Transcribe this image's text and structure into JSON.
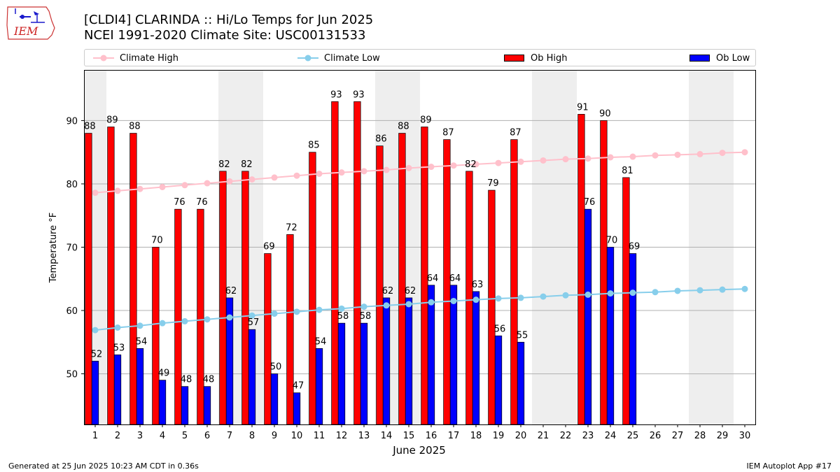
{
  "header": {
    "title_line1": "[CLDI4] CLARINDA :: Hi/Lo Temps for Jun 2025",
    "title_line2": "NCEI 1991-2020 Climate Site: USC00131533"
  },
  "logo": {
    "text": "IEM",
    "color": "#cc2222"
  },
  "footer": {
    "generated": "Generated at 25 Jun 2025 10:23 AM CDT in 0.36s",
    "app": "IEM Autoplot App #17"
  },
  "colors": {
    "climate_high": "#ffc0cb",
    "climate_low": "#87ceeb",
    "ob_high": "#ff0000",
    "ob_low": "#0000ff",
    "weekend_shade": "#eeeeee",
    "grid": "#b0b0b0"
  },
  "chart_data": {
    "type": "bar",
    "xlabel": "June 2025",
    "ylabel": "Temperature °F",
    "ylim": [
      42,
      98
    ],
    "yticks": [
      50,
      60,
      70,
      80,
      90
    ],
    "grid": "horizontal",
    "legend_position": "top",
    "days": [
      1,
      2,
      3,
      4,
      5,
      6,
      7,
      8,
      9,
      10,
      11,
      12,
      13,
      14,
      15,
      16,
      17,
      18,
      19,
      20,
      21,
      22,
      23,
      24,
      25,
      26,
      27,
      28,
      29,
      30
    ],
    "shaded_days": [
      1,
      7,
      8,
      14,
      15,
      21,
      22,
      28,
      29
    ],
    "series": [
      {
        "name": "Climate High",
        "kind": "line",
        "values": [
          78.6,
          78.9,
          79.2,
          79.5,
          79.8,
          80.1,
          80.4,
          80.7,
          81.0,
          81.3,
          81.6,
          81.8,
          82.0,
          82.2,
          82.5,
          82.7,
          82.9,
          83.1,
          83.3,
          83.5,
          83.7,
          83.9,
          84.0,
          84.2,
          84.3,
          84.5,
          84.6,
          84.7,
          84.9,
          85.0
        ]
      },
      {
        "name": "Climate Low",
        "kind": "line",
        "values": [
          56.9,
          57.3,
          57.6,
          58.0,
          58.3,
          58.6,
          58.9,
          59.2,
          59.5,
          59.8,
          60.1,
          60.3,
          60.6,
          60.8,
          61.0,
          61.3,
          61.5,
          61.7,
          61.9,
          62.0,
          62.2,
          62.4,
          62.5,
          62.7,
          62.8,
          62.9,
          63.1,
          63.2,
          63.3,
          63.4
        ]
      },
      {
        "name": "Ob High",
        "kind": "bar",
        "values": [
          88,
          89,
          88,
          70,
          76,
          76,
          82,
          82,
          69,
          72,
          85,
          93,
          93,
          86,
          88,
          89,
          87,
          82,
          79,
          87,
          null,
          null,
          91,
          90,
          81,
          null,
          null,
          null,
          null,
          null
        ]
      },
      {
        "name": "Ob Low",
        "kind": "bar",
        "values": [
          52,
          53,
          54,
          49,
          48,
          48,
          62,
          57,
          50,
          47,
          54,
          58,
          58,
          62,
          62,
          64,
          64,
          63,
          56,
          55,
          null,
          null,
          76,
          70,
          69,
          null,
          null,
          null,
          null,
          null
        ]
      }
    ]
  }
}
